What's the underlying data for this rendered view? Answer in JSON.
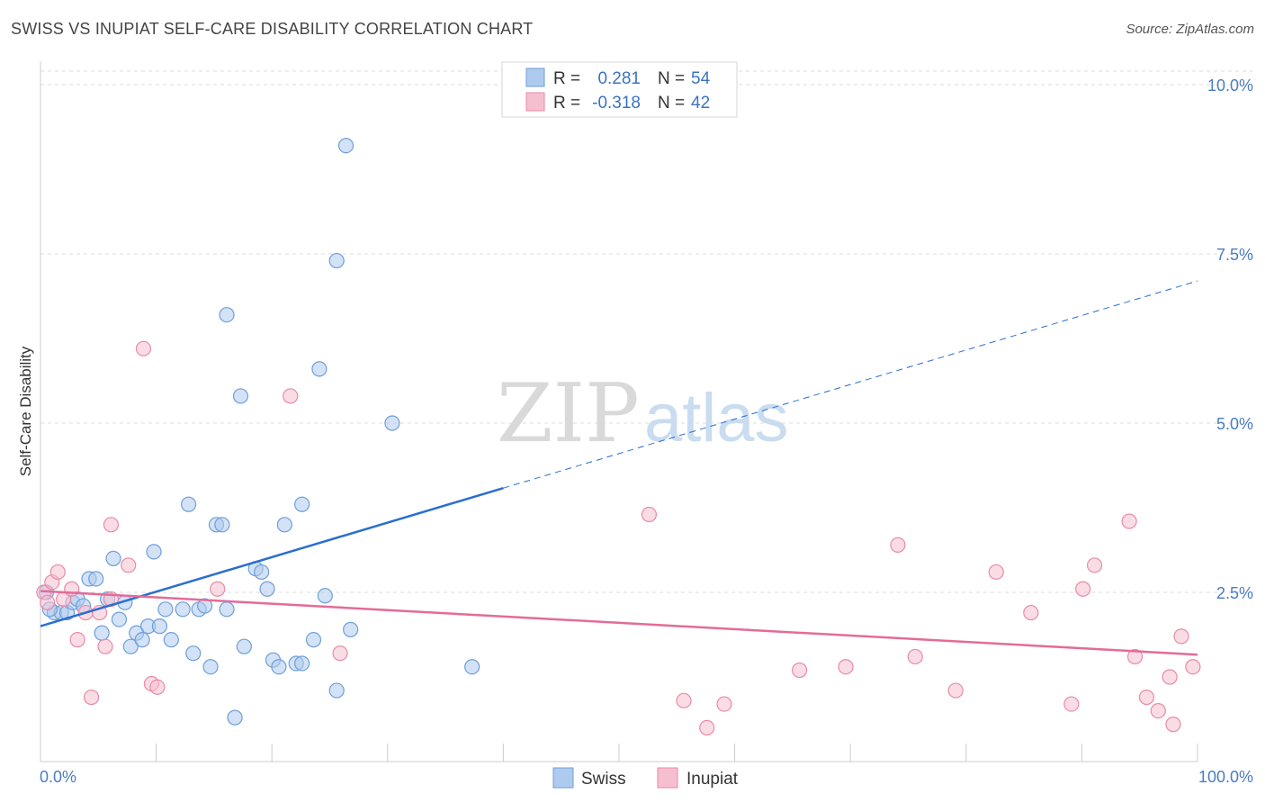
{
  "title": "SWISS VS INUPIAT SELF-CARE DISABILITY CORRELATION CHART",
  "source": "Source: ZipAtlas.com",
  "watermark": {
    "zip": "ZIP",
    "atlas": "atlas"
  },
  "colors": {
    "swiss_fill": "#aecbef",
    "swiss_stroke": "#6f9fd8",
    "swiss_line": "#2a6fcf",
    "inupiat_fill": "#f6bfd0",
    "inupiat_stroke": "#e98aa8",
    "inupiat_line": "#e46b98",
    "grid": "#dddddd",
    "axis_text": "#4a7cc4"
  },
  "legend": {
    "rows": [
      {
        "r_label": "R =",
        "r_value": "0.281",
        "n_label": "N =",
        "n_value": "54"
      },
      {
        "r_label": "R =",
        "r_value": "-0.318",
        "n_label": "N =",
        "n_value": "42"
      }
    ]
  },
  "chart_data": {
    "type": "scatter",
    "title": "SWISS VS INUPIAT SELF-CARE DISABILITY CORRELATION CHART",
    "xlabel": "",
    "ylabel": "Self-Care Disability",
    "xlim": [
      0,
      100
    ],
    "ylim": [
      0,
      10.2
    ],
    "x_tick_labels": [
      "0.0%",
      "100.0%"
    ],
    "y_ticks": [
      {
        "value": 2.5,
        "label": "2.5%"
      },
      {
        "value": 5.0,
        "label": "5.0%"
      },
      {
        "value": 7.5,
        "label": "7.5%"
      },
      {
        "value": 10.0,
        "label": "10.0%"
      }
    ],
    "grid": true,
    "legend_position": "top-center",
    "series": [
      {
        "name": "Swiss",
        "R": 0.281,
        "N": 54,
        "trend": {
          "x_solid_end": 40,
          "x_end": 100,
          "y_at_0": 2.0,
          "y_at_100": 7.1
        },
        "points": [
          [
            0.5,
            2.5
          ],
          [
            1.2,
            2.2
          ],
          [
            1.8,
            2.2
          ],
          [
            2.3,
            2.2
          ],
          [
            2.8,
            2.35
          ],
          [
            3.2,
            2.4
          ],
          [
            3.7,
            2.3
          ],
          [
            4.2,
            2.7
          ],
          [
            4.8,
            2.7
          ],
          [
            5.3,
            1.9
          ],
          [
            5.8,
            2.4
          ],
          [
            6.3,
            3.0
          ],
          [
            6.8,
            2.1
          ],
          [
            7.3,
            2.35
          ],
          [
            7.8,
            1.7
          ],
          [
            8.3,
            1.9
          ],
          [
            8.8,
            1.8
          ],
          [
            9.3,
            2.0
          ],
          [
            9.8,
            3.1
          ],
          [
            10.3,
            2.0
          ],
          [
            10.8,
            2.25
          ],
          [
            11.3,
            1.8
          ],
          [
            12.3,
            2.25
          ],
          [
            12.8,
            3.8
          ],
          [
            13.2,
            1.6
          ],
          [
            13.7,
            2.25
          ],
          [
            14.2,
            2.3
          ],
          [
            14.7,
            1.4
          ],
          [
            15.2,
            3.5
          ],
          [
            15.7,
            3.5
          ],
          [
            16.1,
            2.25
          ],
          [
            16.1,
            6.6
          ],
          [
            16.8,
            0.65
          ],
          [
            17.3,
            5.4
          ],
          [
            17.6,
            1.7
          ],
          [
            18.6,
            2.85
          ],
          [
            19.1,
            2.8
          ],
          [
            19.6,
            2.55
          ],
          [
            20.1,
            1.5
          ],
          [
            20.6,
            1.4
          ],
          [
            21.1,
            3.5
          ],
          [
            22.1,
            1.45
          ],
          [
            22.6,
            1.45
          ],
          [
            22.6,
            3.8
          ],
          [
            23.6,
            1.8
          ],
          [
            24.1,
            5.8
          ],
          [
            24.6,
            2.45
          ],
          [
            25.6,
            1.05
          ],
          [
            25.6,
            7.4
          ],
          [
            26.4,
            9.1
          ],
          [
            26.8,
            1.95
          ],
          [
            30.4,
            5.0
          ],
          [
            37.3,
            1.4
          ],
          [
            0.8,
            2.25
          ]
        ]
      },
      {
        "name": "Inupiat",
        "R": -0.318,
        "N": 42,
        "trend": {
          "x_solid_end": 100,
          "x_end": 100,
          "y_at_0": 2.52,
          "y_at_100": 1.58
        },
        "points": [
          [
            0.3,
            2.5
          ],
          [
            0.6,
            2.35
          ],
          [
            1.0,
            2.65
          ],
          [
            1.5,
            2.8
          ],
          [
            2.0,
            2.4
          ],
          [
            2.7,
            2.55
          ],
          [
            3.2,
            1.8
          ],
          [
            3.9,
            2.2
          ],
          [
            4.4,
            0.95
          ],
          [
            5.1,
            2.2
          ],
          [
            5.6,
            1.7
          ],
          [
            6.1,
            2.4
          ],
          [
            6.1,
            3.5
          ],
          [
            7.6,
            2.9
          ],
          [
            8.9,
            6.1
          ],
          [
            9.6,
            1.15
          ],
          [
            10.1,
            1.1
          ],
          [
            15.3,
            2.55
          ],
          [
            21.6,
            5.4
          ],
          [
            25.9,
            1.6
          ],
          [
            52.6,
            3.65
          ],
          [
            55.6,
            0.9
          ],
          [
            57.6,
            0.5
          ],
          [
            59.1,
            0.85
          ],
          [
            65.6,
            1.35
          ],
          [
            69.6,
            1.4
          ],
          [
            74.1,
            3.2
          ],
          [
            75.6,
            1.55
          ],
          [
            79.1,
            1.05
          ],
          [
            82.6,
            2.8
          ],
          [
            85.6,
            2.2
          ],
          [
            89.1,
            0.85
          ],
          [
            90.1,
            2.55
          ],
          [
            91.1,
            2.9
          ],
          [
            94.1,
            3.55
          ],
          [
            94.6,
            1.55
          ],
          [
            95.6,
            0.95
          ],
          [
            96.6,
            0.75
          ],
          [
            97.6,
            1.25
          ],
          [
            97.9,
            0.55
          ],
          [
            98.6,
            1.85
          ],
          [
            99.6,
            1.4
          ]
        ]
      }
    ]
  }
}
